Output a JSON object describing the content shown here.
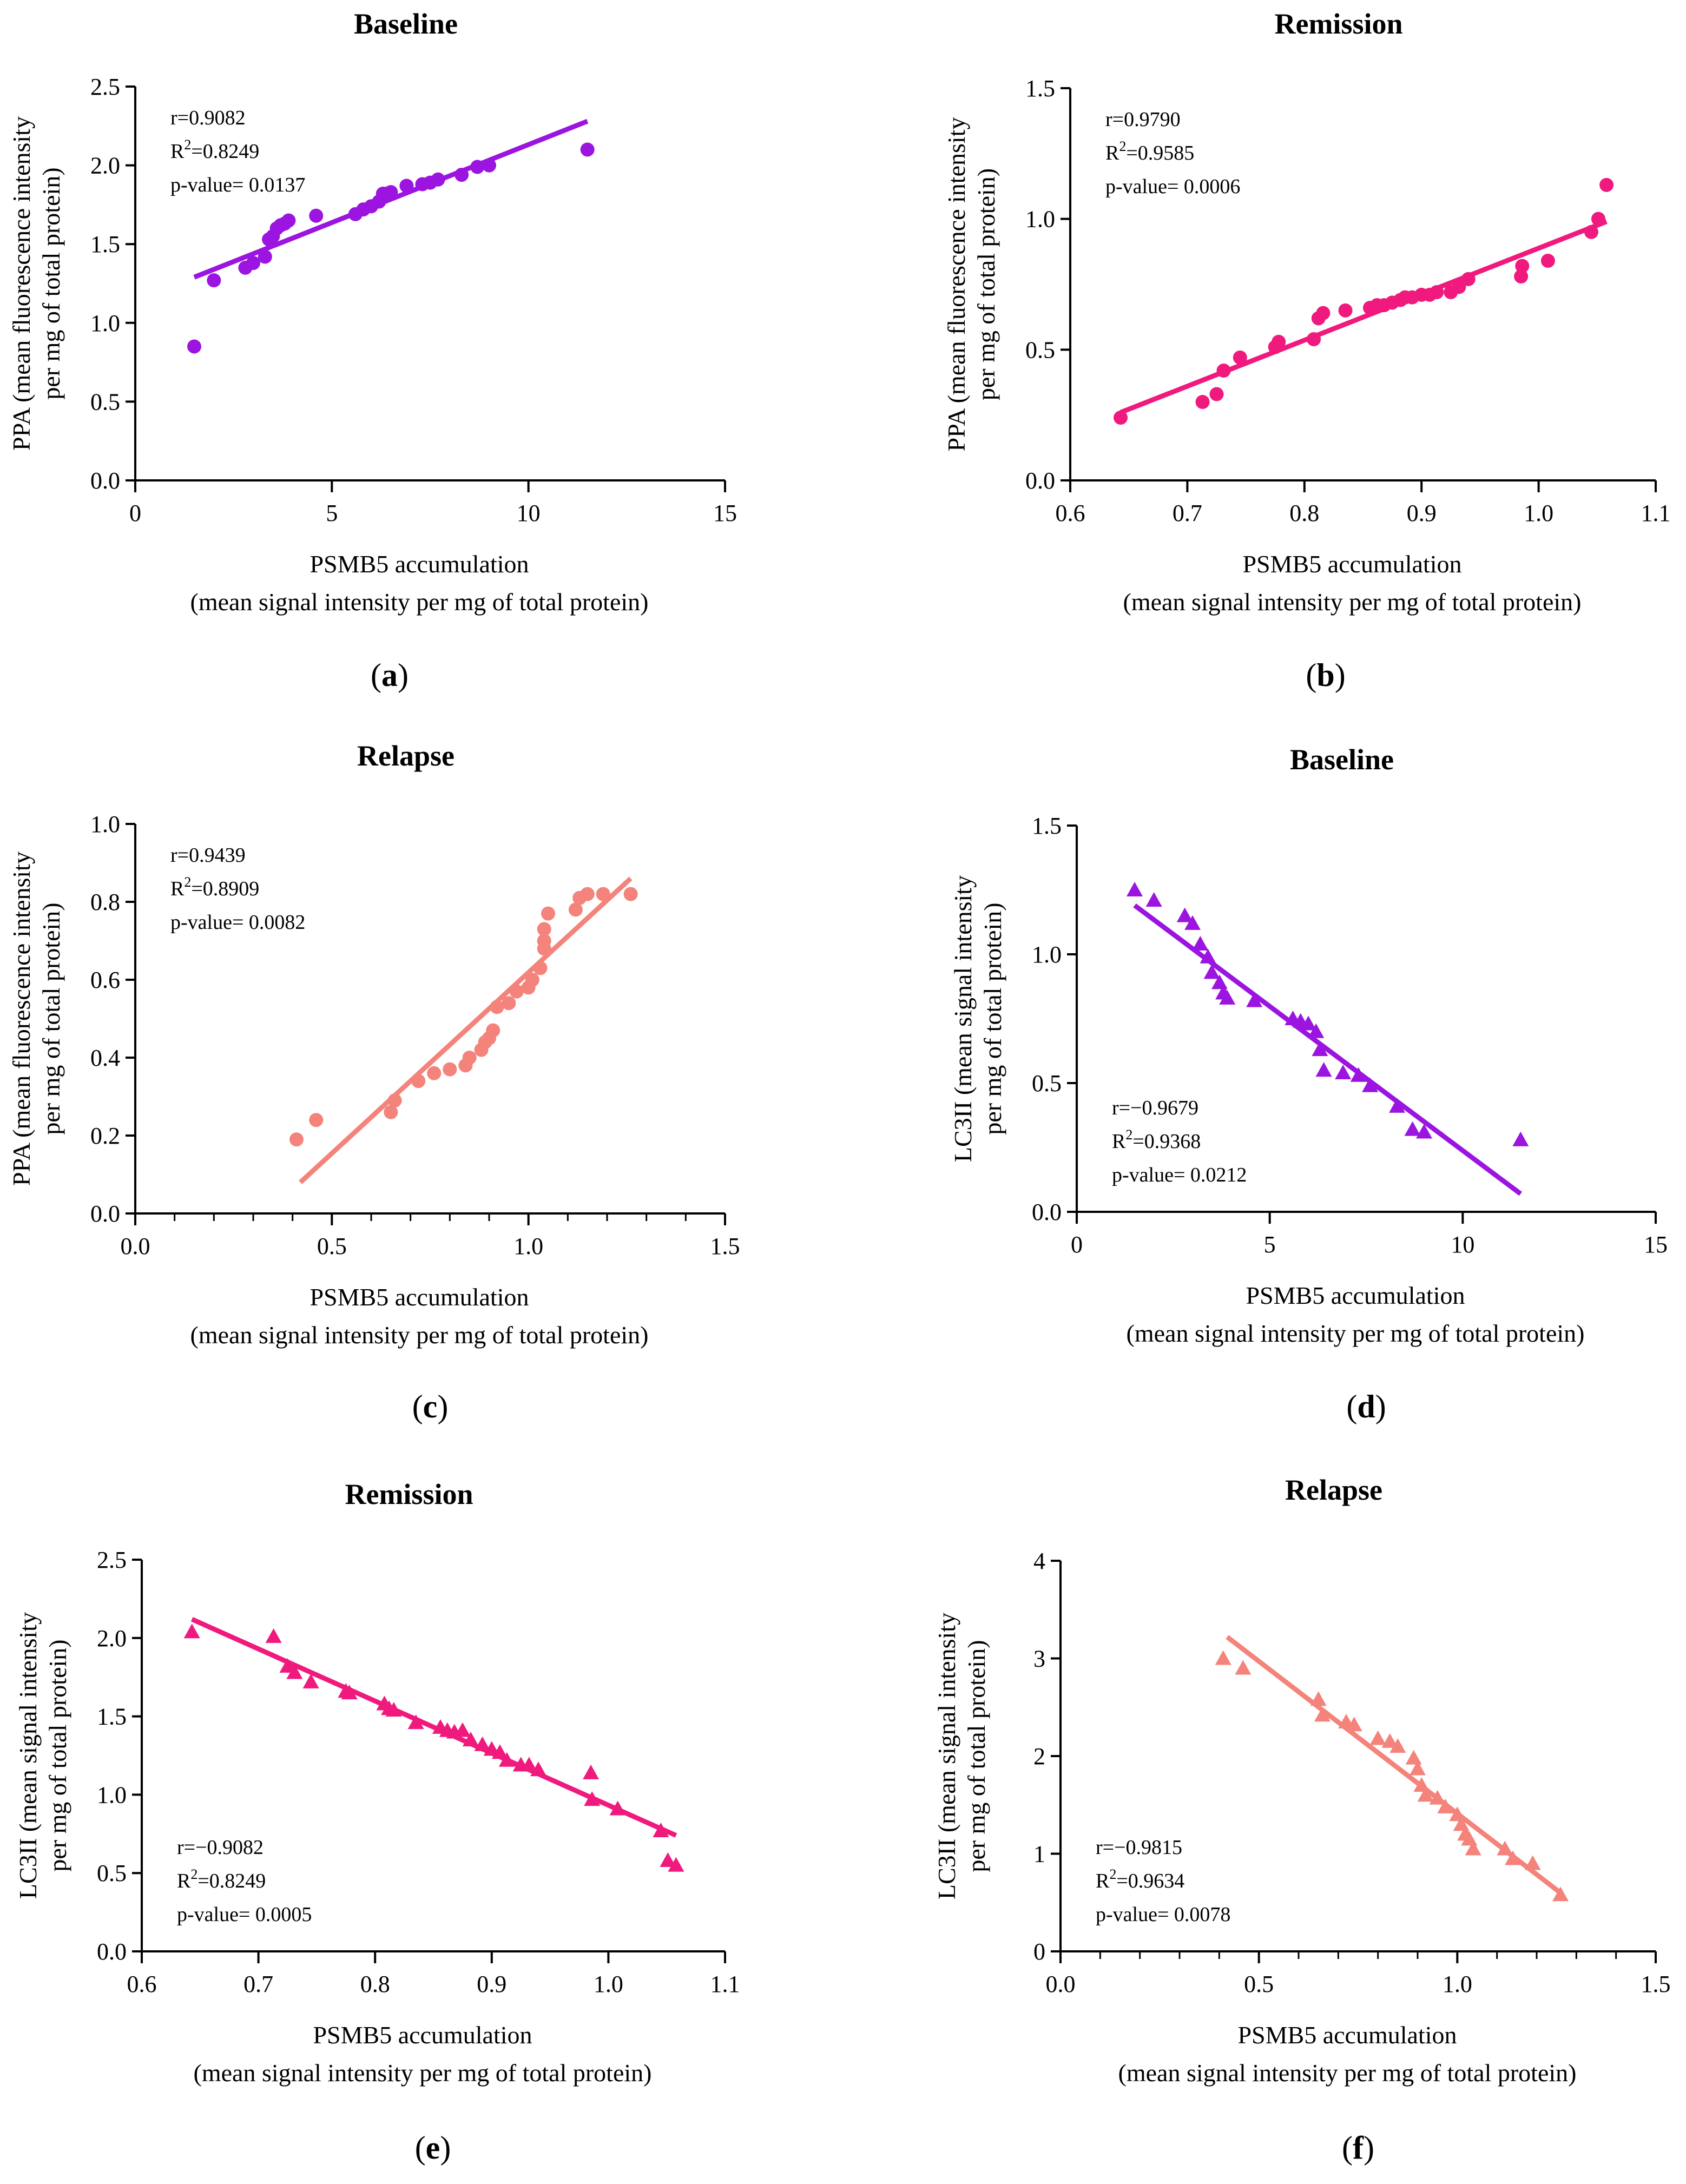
{
  "chart_data": [
    {
      "panel": "a",
      "type": "scatter",
      "title": "Baseline",
      "color": "#9b14e0",
      "marker": "circle",
      "ylabel_lines": [
        "PPA (mean fluorescence intensity",
        "per mg of total protein)"
      ],
      "xlabel_lines": [
        "PSMB5 accumulation",
        "(mean signal intensity per mg of total protein)"
      ],
      "xlim": [
        0,
        15
      ],
      "ylim": [
        0,
        2.5
      ],
      "xticks": [
        "0",
        "5",
        "10",
        "15"
      ],
      "xtick_values": [
        0,
        5,
        10,
        15
      ],
      "xminor": false,
      "yticks": [
        "0.0",
        "0.5",
        "1.0",
        "1.5",
        "2.0",
        "2.5"
      ],
      "ytick_values": [
        0,
        0.5,
        1.0,
        1.5,
        2.0,
        2.5
      ],
      "stats": [
        "r=0.9082",
        "R²=0.8249",
        "p-value= 0.0137"
      ],
      "stats_position": "top-left",
      "fit": {
        "x": [
          1.5,
          11.5
        ],
        "y": [
          1.29,
          2.28
        ]
      },
      "points": {
        "x": [
          1.5,
          2.0,
          2.8,
          3.0,
          3.3,
          3.4,
          3.5,
          3.6,
          3.7,
          3.8,
          3.9,
          4.6,
          5.6,
          5.8,
          6.0,
          6.2,
          6.3,
          6.4,
          6.5,
          6.9,
          7.3,
          7.5,
          7.7,
          8.3,
          8.7,
          9.0,
          11.5
        ],
        "y": [
          0.85,
          1.27,
          1.35,
          1.38,
          1.42,
          1.53,
          1.55,
          1.6,
          1.62,
          1.63,
          1.65,
          1.68,
          1.69,
          1.72,
          1.74,
          1.77,
          1.82,
          1.82,
          1.83,
          1.87,
          1.88,
          1.89,
          1.91,
          1.94,
          1.99,
          2.0,
          2.1
        ]
      }
    },
    {
      "panel": "b",
      "type": "scatter",
      "title": "Remission",
      "color": "#f0197d",
      "marker": "circle",
      "ylabel_lines": [
        "PPA (mean fluorescence intensity",
        "per mg of total protein)"
      ],
      "xlabel_lines": [
        "PSMB5 accumulation",
        "(mean signal intensity per mg of total protein)"
      ],
      "xlim": [
        0.6,
        1.1
      ],
      "ylim": [
        0,
        1.5
      ],
      "xticks": [
        "0.6",
        "0.7",
        "0.8",
        "0.9",
        "1.0",
        "1.1"
      ],
      "xtick_values": [
        0.6,
        0.7,
        0.8,
        0.9,
        1.0,
        1.1
      ],
      "xminor": false,
      "yticks": [
        "0.0",
        "0.5",
        "1.0",
        "1.5"
      ],
      "ytick_values": [
        0,
        0.5,
        1.0,
        1.5
      ],
      "stats": [
        "r=0.9790",
        "R²=0.9585",
        "p-value= 0.0006"
      ],
      "stats_position": "top-left",
      "fit": {
        "x": [
          0.643,
          1.058
        ],
        "y": [
          0.26,
          0.99
        ]
      },
      "points": {
        "x": [
          0.643,
          0.713,
          0.725,
          0.731,
          0.745,
          0.775,
          0.778,
          0.808,
          0.812,
          0.816,
          0.835,
          0.856,
          0.862,
          0.868,
          0.875,
          0.882,
          0.886,
          0.892,
          0.9,
          0.907,
          0.913,
          0.925,
          0.932,
          0.94,
          0.985,
          0.986,
          1.008,
          1.045,
          1.051,
          1.058
        ],
        "y": [
          0.24,
          0.3,
          0.33,
          0.42,
          0.47,
          0.51,
          0.53,
          0.54,
          0.62,
          0.64,
          0.65,
          0.66,
          0.67,
          0.67,
          0.68,
          0.69,
          0.7,
          0.7,
          0.71,
          0.71,
          0.72,
          0.72,
          0.74,
          0.77,
          0.78,
          0.82,
          0.84,
          0.95,
          1.0,
          1.13
        ]
      }
    },
    {
      "panel": "c",
      "type": "scatter",
      "title": "Relapse",
      "color": "#f4837b",
      "marker": "circle",
      "ylabel_lines": [
        "PPA (mean fluorescence intensity",
        "per mg of total protein)"
      ],
      "xlabel_lines": [
        "PSMB5 accumulation",
        "(mean signal intensity per mg of total protein)"
      ],
      "xlim": [
        0,
        1.5
      ],
      "ylim": [
        0,
        1.0
      ],
      "xticks": [
        "0.0",
        "0.5",
        "1.0",
        "1.5"
      ],
      "xtick_values": [
        0,
        0.5,
        1.0,
        1.5
      ],
      "xminor": true,
      "yticks": [
        "0.0",
        "0.2",
        "0.4",
        "0.6",
        "0.8",
        "1.0"
      ],
      "ytick_values": [
        0,
        0.2,
        0.4,
        0.6,
        0.8,
        1.0
      ],
      "stats": [
        "r=0.9439",
        "R²=0.8909",
        "p-value= 0.0082"
      ],
      "stats_position": "top-left",
      "fit": {
        "x": [
          0.42,
          1.26
        ],
        "y": [
          0.08,
          0.86
        ]
      },
      "points": {
        "x": [
          0.41,
          0.46,
          0.65,
          0.66,
          0.72,
          0.76,
          0.8,
          0.84,
          0.85,
          0.88,
          0.89,
          0.9,
          0.91,
          0.92,
          0.95,
          0.97,
          1.0,
          1.01,
          1.03,
          1.04,
          1.04,
          1.04,
          1.05,
          1.12,
          1.13,
          1.15,
          1.19,
          1.26
        ],
        "y": [
          0.19,
          0.24,
          0.26,
          0.29,
          0.34,
          0.36,
          0.37,
          0.38,
          0.4,
          0.42,
          0.44,
          0.45,
          0.47,
          0.53,
          0.54,
          0.57,
          0.58,
          0.6,
          0.63,
          0.68,
          0.7,
          0.73,
          0.77,
          0.78,
          0.81,
          0.82,
          0.82,
          0.82
        ]
      }
    },
    {
      "panel": "d",
      "type": "scatter",
      "title": "Baseline",
      "color": "#9b14e0",
      "marker": "triangle",
      "ylabel_lines": [
        "LC3II (mean signal intensity",
        "per mg of total protein)"
      ],
      "xlabel_lines": [
        "PSMB5 accumulation",
        "(mean signal intensity per mg of total protein)"
      ],
      "xlim": [
        0,
        15
      ],
      "ylim": [
        0,
        1.5
      ],
      "xticks": [
        "0",
        "5",
        "10",
        "15"
      ],
      "xtick_values": [
        0,
        5,
        10,
        15
      ],
      "xminor": false,
      "yticks": [
        "0.0",
        "0.5",
        "1.0",
        "1.5"
      ],
      "ytick_values": [
        0,
        0.5,
        1.0,
        1.5
      ],
      "stats": [
        "r=−0.9679",
        "R²=0.9368",
        "p-value= 0.0212"
      ],
      "stats_position": "bottom-left",
      "fit": {
        "x": [
          1.5,
          11.5
        ],
        "y": [
          1.19,
          0.07
        ]
      },
      "points": {
        "x": [
          1.5,
          2.0,
          2.8,
          3.0,
          3.2,
          3.4,
          3.5,
          3.7,
          3.8,
          3.9,
          4.6,
          5.6,
          5.8,
          6.0,
          6.2,
          6.3,
          6.4,
          6.9,
          7.3,
          7.6,
          8.3,
          8.7,
          9.0,
          11.5
        ],
        "y": [
          1.25,
          1.21,
          1.15,
          1.12,
          1.04,
          0.99,
          0.93,
          0.89,
          0.85,
          0.83,
          0.82,
          0.75,
          0.74,
          0.73,
          0.7,
          0.63,
          0.55,
          0.54,
          0.53,
          0.49,
          0.41,
          0.32,
          0.31,
          0.28
        ]
      }
    },
    {
      "panel": "e",
      "type": "scatter",
      "title": "Remission",
      "color": "#f0197d",
      "marker": "triangle",
      "ylabel_lines": [
        "LC3II (mean signal intensity",
        "per mg of total protein)"
      ],
      "xlabel_lines": [
        "PSMB5 accumulation",
        "(mean signal intensity per mg of total protein)"
      ],
      "xlim": [
        0.6,
        1.1
      ],
      "ylim": [
        0,
        2.5
      ],
      "xticks": [
        "0.6",
        "0.7",
        "0.8",
        "0.9",
        "1.0",
        "1.1"
      ],
      "xtick_values": [
        0.6,
        0.7,
        0.8,
        0.9,
        1.0,
        1.1
      ],
      "xminor": false,
      "yticks": [
        "0.0",
        "0.5",
        "1.0",
        "1.5",
        "2.0",
        "2.5"
      ],
      "ytick_values": [
        0,
        0.5,
        1.0,
        1.5,
        2.0,
        2.5
      ],
      "stats": [
        "r=−0.9082",
        "R²=0.8249",
        "p-value= 0.0005"
      ],
      "stats_position": "bottom-left",
      "fit": {
        "x": [
          0.643,
          1.058
        ],
        "y": [
          2.12,
          0.74
        ]
      },
      "points": {
        "x": [
          0.643,
          0.713,
          0.725,
          0.731,
          0.745,
          0.775,
          0.778,
          0.808,
          0.812,
          0.816,
          0.835,
          0.856,
          0.862,
          0.868,
          0.875,
          0.882,
          0.892,
          0.9,
          0.907,
          0.913,
          0.925,
          0.932,
          0.94,
          0.985,
          0.986,
          1.008,
          1.045,
          1.051,
          1.058
        ],
        "y": [
          2.04,
          2.01,
          1.82,
          1.78,
          1.72,
          1.66,
          1.65,
          1.58,
          1.55,
          1.54,
          1.46,
          1.43,
          1.41,
          1.4,
          1.41,
          1.35,
          1.32,
          1.29,
          1.27,
          1.22,
          1.19,
          1.19,
          1.16,
          1.14,
          0.97,
          0.91,
          0.77,
          0.58,
          0.55
        ]
      }
    },
    {
      "panel": "f",
      "type": "scatter",
      "title": "Relapse",
      "color": "#f4837b",
      "marker": "triangle",
      "ylabel_lines": [
        "LC3II (mean signal intensity",
        "per mg of total protein)"
      ],
      "xlabel_lines": [
        "PSMB5 accumulation",
        "(mean signal intensity per mg of total protein)"
      ],
      "xlim": [
        0,
        1.5
      ],
      "ylim": [
        0,
        4
      ],
      "xticks": [
        "0.0",
        "0.5",
        "1.0",
        "1.5"
      ],
      "xtick_values": [
        0,
        0.5,
        1.0,
        1.5
      ],
      "xminor": true,
      "yticks": [
        "0",
        "1",
        "2",
        "3",
        "4"
      ],
      "ytick_values": [
        0,
        1,
        2,
        3,
        4
      ],
      "stats": [
        "r=−0.9815",
        "R²=0.9634",
        "p-value= 0.0078"
      ],
      "stats_position": "bottom-left",
      "fit": {
        "x": [
          0.42,
          1.26
        ],
        "y": [
          3.22,
          0.6
        ]
      },
      "points": {
        "x": [
          0.41,
          0.46,
          0.65,
          0.66,
          0.72,
          0.74,
          0.8,
          0.83,
          0.85,
          0.89,
          0.9,
          0.91,
          0.92,
          0.95,
          0.97,
          1.0,
          1.01,
          1.02,
          1.03,
          1.04,
          1.12,
          1.14,
          1.19,
          1.26
        ],
        "y": [
          3.0,
          2.9,
          2.58,
          2.42,
          2.35,
          2.32,
          2.18,
          2.15,
          2.1,
          1.98,
          1.87,
          1.7,
          1.6,
          1.57,
          1.48,
          1.4,
          1.3,
          1.2,
          1.15,
          1.05,
          1.05,
          0.95,
          0.9,
          0.58
        ]
      }
    }
  ]
}
